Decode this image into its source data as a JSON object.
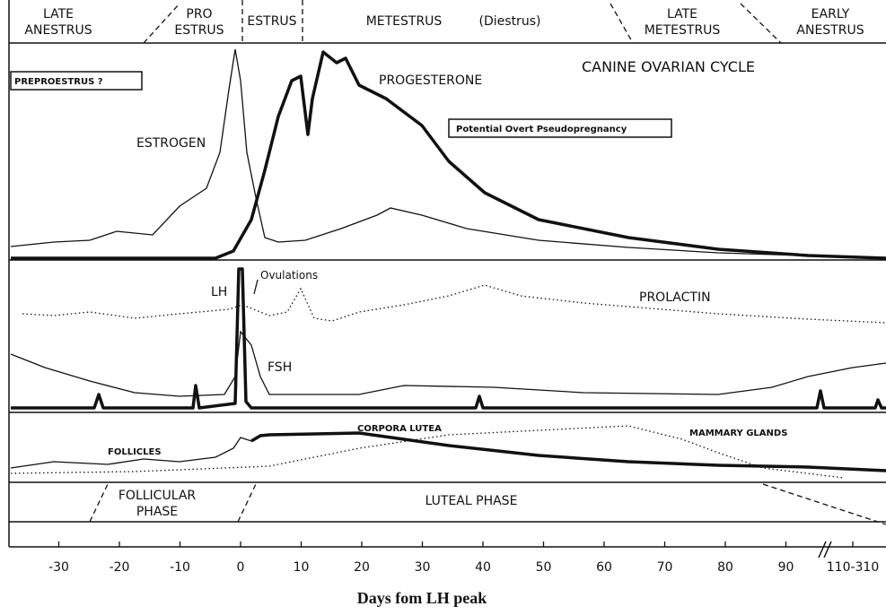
{
  "header": {
    "phases": [
      {
        "lines": [
          "LATE",
          "ANESTRUS"
        ]
      },
      {
        "lines": [
          "PRO",
          "ESTRUS"
        ]
      },
      {
        "lines": [
          "ESTRUS"
        ]
      },
      {
        "lines": [
          "METESTRUS"
        ]
      },
      {
        "lines": [
          "(Diestrus)"
        ]
      },
      {
        "lines": [
          "LATE",
          "METESTRUS"
        ]
      },
      {
        "lines": [
          "EARLY",
          "ANESTRUS"
        ]
      }
    ]
  },
  "title": "CANINE OVARIAN CYCLE",
  "boxes": [
    "PREPROESTRUS ?",
    "Potential Overt Pseudopregnancy"
  ],
  "labels": {
    "estrogen": "ESTROGEN",
    "progesterone": "PROGESTERONE",
    "lh": "LH",
    "ovulations": "Ovulations",
    "fsh": "FSH",
    "prolactin": "PROLACTIN",
    "follicles": "FOLLICLES",
    "corpora_lutea": "CORPORA LUTEA",
    "mammary_glands": "MAMMARY GLANDS"
  },
  "phases": [
    {
      "lines": [
        "FOLLICULAR",
        "PHASE"
      ]
    },
    {
      "lines": [
        "LUTEAL  PHASE"
      ]
    }
  ],
  "x_axis": {
    "ticks": [
      "-30",
      "-20",
      "-10",
      "0",
      "10",
      "20",
      "30",
      "40",
      "50",
      "60",
      "70",
      "80",
      "90",
      "110-310"
    ],
    "label": "Days fom LH peak"
  }
}
